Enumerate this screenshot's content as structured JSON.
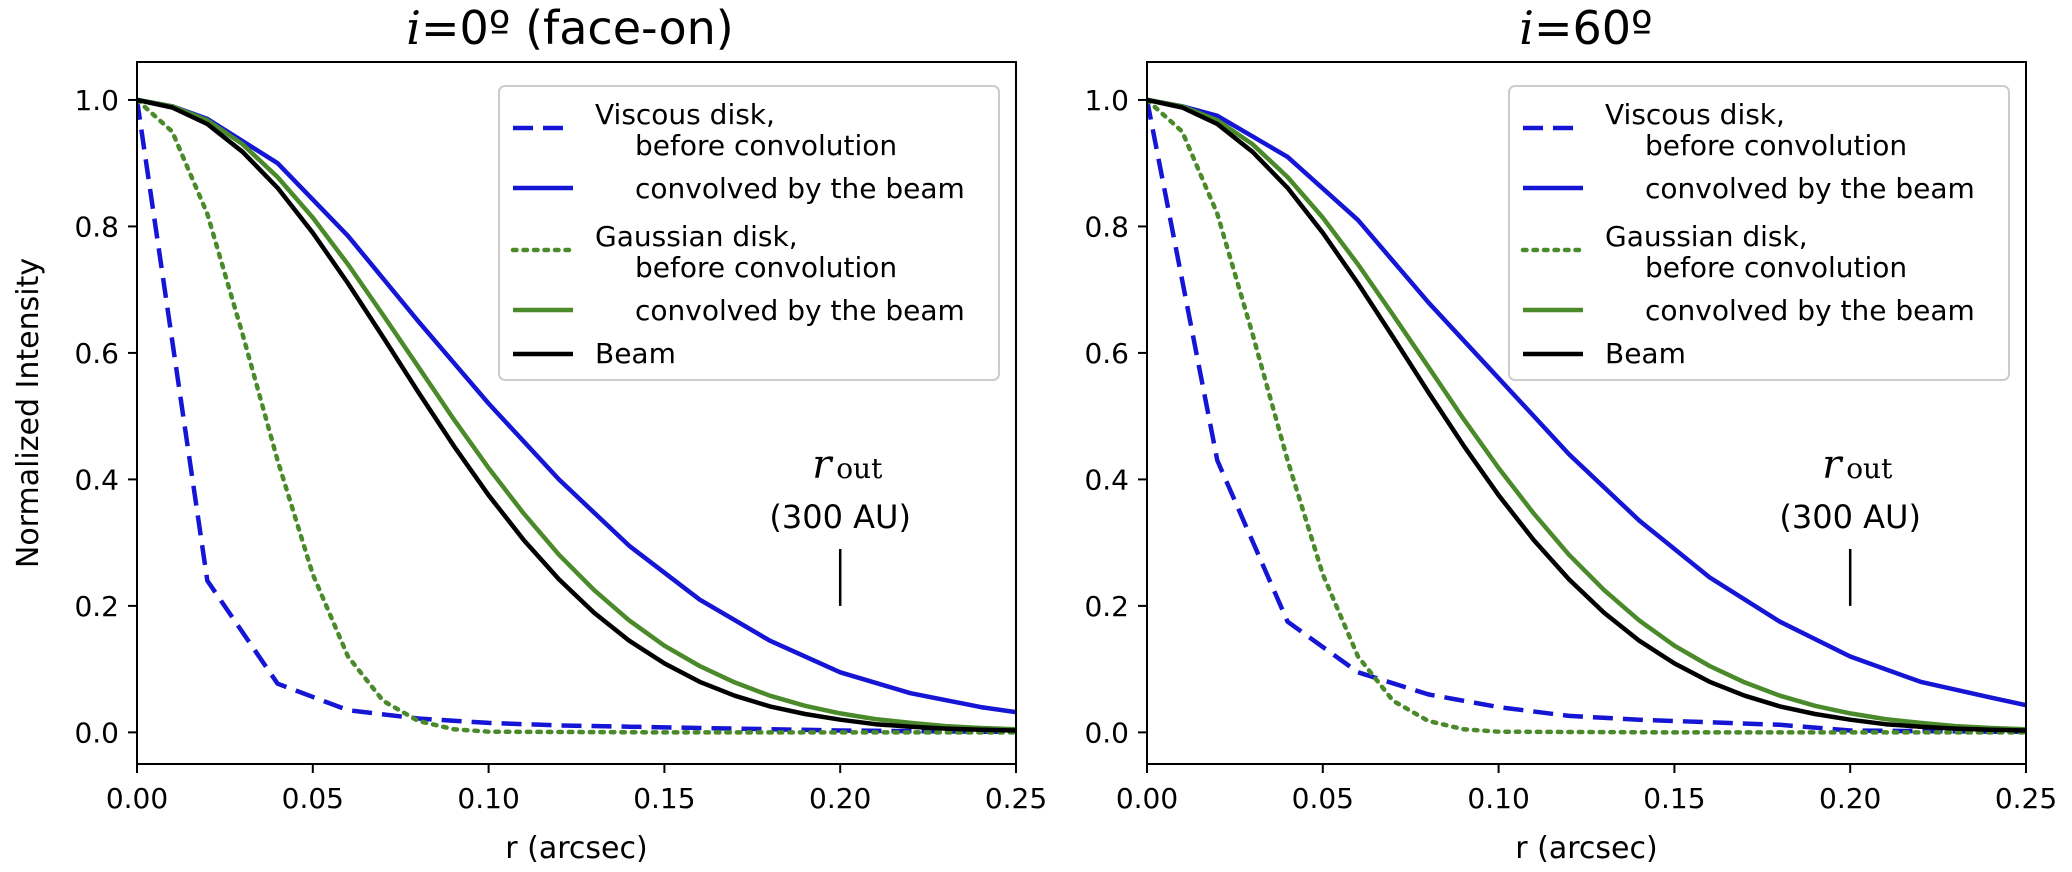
{
  "chart_data": [
    {
      "type": "line",
      "title_symbol": "i",
      "title_rest": "=0º (face-on)",
      "xlabel": "r (arcsec)",
      "ylabel": "Normalized Intensity",
      "xlim": [
        0,
        0.25
      ],
      "ylim": [
        -0.05,
        1.06
      ],
      "xticks": [
        "0.00",
        "0.05",
        "0.10",
        "0.15",
        "0.20",
        "0.25"
      ],
      "yticks": [
        "0.0",
        "0.2",
        "0.4",
        "0.6",
        "0.8",
        "1.0"
      ],
      "legend_position": "top-right",
      "legend": [
        {
          "line1": "Viscous disk,",
          "line2": "before convolution"
        },
        {
          "line1": "",
          "line2": "convolved by the beam"
        },
        {
          "line1": "Gaussian disk,",
          "line2": "before convolution"
        },
        {
          "line1": "",
          "line2": "convolved by the beam"
        },
        {
          "line1": "Beam",
          "line2": ""
        }
      ],
      "annotation": {
        "symbol": "r",
        "subscript": "out",
        "text": "(300 AU)",
        "x": 0.2,
        "marker_y": [
          0.2,
          0.29
        ]
      },
      "series": [
        {
          "name": "Viscous disk, before convolution",
          "color": "#1515d6",
          "style": "dashed",
          "x": [
            0,
            0.02,
            0.04,
            0.06,
            0.08,
            0.1,
            0.12,
            0.14,
            0.16,
            0.18,
            0.2,
            0.22,
            0.24,
            0.25
          ],
          "y": [
            1.0,
            0.24,
            0.077,
            0.035,
            0.022,
            0.015,
            0.011,
            0.009,
            0.007,
            0.005,
            0.003,
            0.002,
            0.001,
            0.001
          ]
        },
        {
          "name": "Viscous disk, convolved by the beam",
          "color": "#1515d6",
          "style": "solid",
          "x": [
            0,
            0.01,
            0.02,
            0.04,
            0.06,
            0.08,
            0.1,
            0.12,
            0.14,
            0.16,
            0.18,
            0.2,
            0.22,
            0.24,
            0.25
          ],
          "y": [
            1.0,
            0.99,
            0.97,
            0.9,
            0.785,
            0.65,
            0.52,
            0.4,
            0.295,
            0.21,
            0.145,
            0.095,
            0.062,
            0.04,
            0.032
          ]
        },
        {
          "name": "Gaussian disk, before convolution",
          "color": "#4a8a2a",
          "style": "dotted",
          "x": [
            0,
            0.01,
            0.02,
            0.03,
            0.04,
            0.05,
            0.06,
            0.07,
            0.08,
            0.09,
            0.1,
            0.15,
            0.2,
            0.25
          ],
          "y": [
            1.0,
            0.95,
            0.82,
            0.63,
            0.43,
            0.25,
            0.12,
            0.05,
            0.018,
            0.005,
            0.001,
            0,
            0,
            0
          ]
        },
        {
          "name": "Gaussian disk, convolved by the beam",
          "color": "#4a8a2a",
          "style": "solid",
          "x": [
            0,
            0.01,
            0.02,
            0.03,
            0.04,
            0.05,
            0.06,
            0.07,
            0.08,
            0.09,
            0.1,
            0.11,
            0.12,
            0.13,
            0.14,
            0.15,
            0.16,
            0.17,
            0.18,
            0.19,
            0.2,
            0.21,
            0.22,
            0.23,
            0.24,
            0.25
          ],
          "y": [
            1.0,
            0.99,
            0.968,
            0.93,
            0.878,
            0.814,
            0.74,
            0.66,
            0.578,
            0.496,
            0.418,
            0.346,
            0.281,
            0.225,
            0.177,
            0.137,
            0.105,
            0.079,
            0.058,
            0.042,
            0.03,
            0.021,
            0.015,
            0.01,
            0.007,
            0.005
          ]
        },
        {
          "name": "Beam",
          "color": "#000000",
          "style": "solid",
          "x": [
            0,
            0.01,
            0.02,
            0.03,
            0.04,
            0.05,
            0.06,
            0.07,
            0.08,
            0.09,
            0.1,
            0.11,
            0.12,
            0.13,
            0.14,
            0.15,
            0.16,
            0.17,
            0.18,
            0.19,
            0.2,
            0.21,
            0.22,
            0.23,
            0.24,
            0.25
          ],
          "y": [
            1.0,
            0.988,
            0.962,
            0.918,
            0.861,
            0.79,
            0.71,
            0.625,
            0.538,
            0.454,
            0.375,
            0.304,
            0.242,
            0.189,
            0.145,
            0.109,
            0.08,
            0.058,
            0.041,
            0.029,
            0.02,
            0.013,
            0.009,
            0.006,
            0.004,
            0.003
          ]
        }
      ]
    },
    {
      "type": "line",
      "title_symbol": "i",
      "title_rest": "=60º",
      "xlabel": "r (arcsec)",
      "ylabel": "",
      "xlim": [
        0,
        0.25
      ],
      "ylim": [
        -0.05,
        1.06
      ],
      "xticks": [
        "0.00",
        "0.05",
        "0.10",
        "0.15",
        "0.20",
        "0.25"
      ],
      "yticks": [
        "0.0",
        "0.2",
        "0.4",
        "0.6",
        "0.8",
        "1.0"
      ],
      "legend_position": "top-right",
      "legend": [
        {
          "line1": "Viscous disk,",
          "line2": "before convolution"
        },
        {
          "line1": "",
          "line2": "convolved by the beam"
        },
        {
          "line1": "Gaussian disk,",
          "line2": "before convolution"
        },
        {
          "line1": "",
          "line2": "convolved by the beam"
        },
        {
          "line1": "Beam",
          "line2": ""
        }
      ],
      "annotation": {
        "symbol": "r",
        "subscript": "out",
        "text": "(300 AU)",
        "x": 0.2,
        "marker_y": [
          0.2,
          0.29
        ]
      },
      "series": [
        {
          "name": "Viscous disk, before convolution",
          "color": "#1515d6",
          "style": "dashed",
          "x": [
            0,
            0.02,
            0.04,
            0.06,
            0.08,
            0.1,
            0.12,
            0.14,
            0.16,
            0.18,
            0.2,
            0.22,
            0.24,
            0.25
          ],
          "y": [
            1.0,
            0.43,
            0.175,
            0.095,
            0.06,
            0.04,
            0.026,
            0.02,
            0.016,
            0.012,
            0.003,
            0.002,
            0.001,
            0.001
          ]
        },
        {
          "name": "Viscous disk, convolved by the beam",
          "color": "#1515d6",
          "style": "solid",
          "x": [
            0,
            0.01,
            0.02,
            0.04,
            0.06,
            0.08,
            0.1,
            0.12,
            0.14,
            0.16,
            0.18,
            0.2,
            0.22,
            0.24,
            0.25
          ],
          "y": [
            1.0,
            0.99,
            0.975,
            0.91,
            0.81,
            0.68,
            0.56,
            0.44,
            0.335,
            0.245,
            0.175,
            0.12,
            0.08,
            0.055,
            0.043
          ]
        },
        {
          "name": "Gaussian disk, before convolution",
          "color": "#4a8a2a",
          "style": "dotted",
          "x": [
            0,
            0.01,
            0.02,
            0.03,
            0.04,
            0.05,
            0.06,
            0.07,
            0.08,
            0.09,
            0.1,
            0.15,
            0.2,
            0.25
          ],
          "y": [
            1.0,
            0.95,
            0.82,
            0.63,
            0.43,
            0.25,
            0.12,
            0.05,
            0.018,
            0.005,
            0.001,
            0,
            0,
            0
          ]
        },
        {
          "name": "Gaussian disk, convolved by the beam",
          "color": "#4a8a2a",
          "style": "solid",
          "x": [
            0,
            0.01,
            0.02,
            0.03,
            0.04,
            0.05,
            0.06,
            0.07,
            0.08,
            0.09,
            0.1,
            0.11,
            0.12,
            0.13,
            0.14,
            0.15,
            0.16,
            0.17,
            0.18,
            0.19,
            0.2,
            0.21,
            0.22,
            0.23,
            0.24,
            0.25
          ],
          "y": [
            1.0,
            0.99,
            0.968,
            0.93,
            0.878,
            0.814,
            0.74,
            0.66,
            0.578,
            0.496,
            0.418,
            0.346,
            0.281,
            0.225,
            0.177,
            0.137,
            0.105,
            0.079,
            0.058,
            0.042,
            0.03,
            0.021,
            0.015,
            0.01,
            0.007,
            0.005
          ]
        },
        {
          "name": "Beam",
          "color": "#000000",
          "style": "solid",
          "x": [
            0,
            0.01,
            0.02,
            0.03,
            0.04,
            0.05,
            0.06,
            0.07,
            0.08,
            0.09,
            0.1,
            0.11,
            0.12,
            0.13,
            0.14,
            0.15,
            0.16,
            0.17,
            0.18,
            0.19,
            0.2,
            0.21,
            0.22,
            0.23,
            0.24,
            0.25
          ],
          "y": [
            1.0,
            0.988,
            0.962,
            0.918,
            0.861,
            0.79,
            0.71,
            0.625,
            0.538,
            0.454,
            0.375,
            0.304,
            0.242,
            0.189,
            0.145,
            0.109,
            0.08,
            0.058,
            0.041,
            0.029,
            0.02,
            0.013,
            0.009,
            0.006,
            0.004,
            0.003
          ]
        }
      ]
    }
  ]
}
